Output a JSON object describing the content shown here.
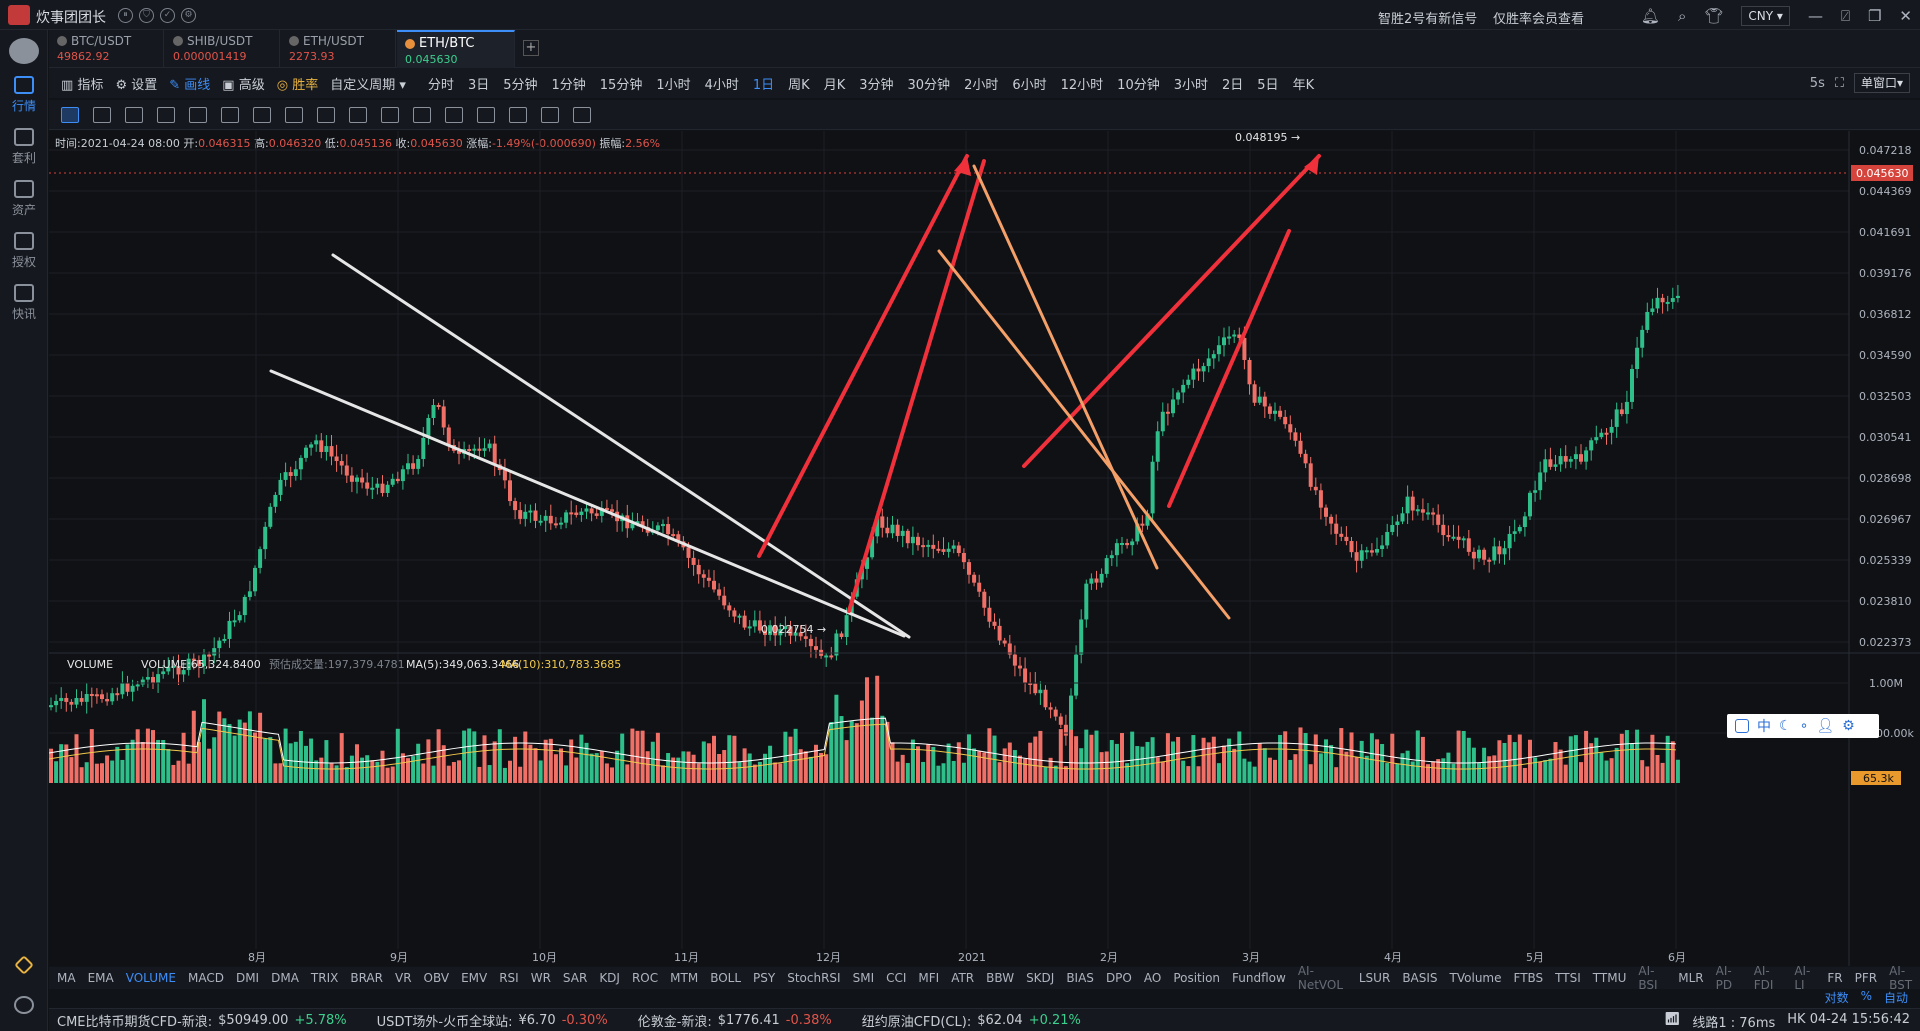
{
  "title_bar": {
    "app_name": "炊事团团长",
    "signal_text": "智胜2号有新信号",
    "promo_text": "仅胜率会员查看",
    "currency": "CNY"
  },
  "sidebar": {
    "items": [
      {
        "label": "行情",
        "icon": "quote-icon"
      },
      {
        "label": "套利",
        "icon": "arbitrage-icon"
      },
      {
        "label": "资产",
        "icon": "wallet-icon"
      },
      {
        "label": "授权",
        "icon": "key-icon"
      },
      {
        "label": "快讯",
        "icon": "news-icon"
      }
    ]
  },
  "tabs": [
    {
      "name": "BTC/USDT",
      "price": "49862.92"
    },
    {
      "name": "SHIB/USDT",
      "price": "0.000001419"
    },
    {
      "name": "ETH/USDT",
      "price": "2273.93"
    },
    {
      "name": "ETH/BTC",
      "price": "0.045630",
      "active": true
    }
  ],
  "toolbar": {
    "indicator": "指标",
    "settings": "设置",
    "draw": "画线",
    "advanced": "高级",
    "winrate": "胜率",
    "custom_period": "自定义周期",
    "periods": [
      "分时",
      "3日",
      "5分钟",
      "1分钟",
      "15分钟",
      "1小时",
      "4小时",
      "1日",
      "周K",
      "月K",
      "3分钟",
      "30分钟",
      "2小时",
      "6小时",
      "12小时",
      "10分钟",
      "3小时",
      "2日",
      "5日",
      "年K"
    ],
    "active_period": "1日",
    "refresh": "5s",
    "window_mode": "单窗口"
  },
  "ohlc": {
    "time_label": "时间:",
    "time": "2021-04-24 08:00",
    "open_label": "开:",
    "open": "0.046315",
    "high_label": "高:",
    "high": "0.046320",
    "low_label": "低:",
    "low": "0.045136",
    "close_label": "收:",
    "close": "0.045630",
    "change_label": "涨幅:",
    "change": "-1.49%(-0.000690)",
    "amp_label": "振幅:",
    "amp": "2.56%"
  },
  "chart_data": {
    "type": "candlestick",
    "y_ticks": [
      "0.047218",
      "0.044369",
      "0.041691",
      "0.039176",
      "0.036812",
      "0.034590",
      "0.032503",
      "0.030541",
      "0.028698",
      "0.026967",
      "0.025339",
      "0.023810",
      "0.022373"
    ],
    "last_price": "0.045630",
    "x_ticks": [
      "8月",
      "9月",
      "10月",
      "11月",
      "12月",
      "2021",
      "2月",
      "3月",
      "4月",
      "5月",
      "6月"
    ],
    "high_annotation": "0.048195 →",
    "low_annotation": "0.022754 →",
    "volume": {
      "label": "VOLUME",
      "value_label": "VOLUME:65,324.8400",
      "forecast": "预估成交量:197,379.4781",
      "ma5": "MA(5):349,063.3466",
      "ma10": "MA(10):310,783.3685",
      "y_ticks": [
        "1.00M",
        "500.00k"
      ],
      "last": "65.3k"
    },
    "colors": {
      "up": "#2fbf8a",
      "down": "#f07068",
      "ma5": "#ffffff",
      "ma10": "#f2c94c",
      "red_line": "#f0303a",
      "orange_line": "#f4a068",
      "white_line": "#e6e6e6"
    }
  },
  "indicators": [
    "MA",
    "EMA",
    "VOLUME",
    "MACD",
    "DMI",
    "DMA",
    "TRIX",
    "BRAR",
    "VR",
    "OBV",
    "EMV",
    "RSI",
    "WR",
    "SAR",
    "KDJ",
    "ROC",
    "MTM",
    "BOLL",
    "PSY",
    "StochRSI",
    "SMI",
    "CCI",
    "MFI",
    "ATR",
    "BBW",
    "SKDJ",
    "BIAS",
    "DPO",
    "AO",
    "Position",
    "Fundflow",
    "AI-NetVOL",
    "LSUR",
    "BASIS",
    "TVolume",
    "FTBS",
    "TTSI",
    "TTMU",
    "AI-BSI",
    "MLR",
    "AI-PD",
    "AI-FDI",
    "AI-LI",
    "FR",
    "PFR",
    "AI-BST"
  ],
  "indicators_active": "VOLUME",
  "indicators_dim": [
    "AI-NetVOL",
    "AI-BSI",
    "AI-PD",
    "AI-FDI",
    "AI-LI",
    "AI-BST"
  ],
  "scale_buttons": {
    "log": "对数",
    "pct": "%",
    "auto": "自动"
  },
  "float_panel": {
    "lang": "中"
  },
  "status": {
    "items": [
      {
        "label": "CME比特币期货CFD-新浪:",
        "value": "$50949.00",
        "change": "+5.78%",
        "dir": "pos"
      },
      {
        "label": "USDT场外-火币全球站:",
        "value": "¥6.70",
        "change": "-0.30%",
        "dir": "neg"
      },
      {
        "label": "伦敦金-新浪:",
        "value": "$1776.41",
        "change": "-0.38%",
        "dir": "neg"
      },
      {
        "label": "纽约原油CFD(CL):",
        "value": "$62.04",
        "change": "+0.21%",
        "dir": "pos"
      }
    ],
    "line": "线路1 : 76ms",
    "time": "HK 04-24 15:56:42"
  }
}
